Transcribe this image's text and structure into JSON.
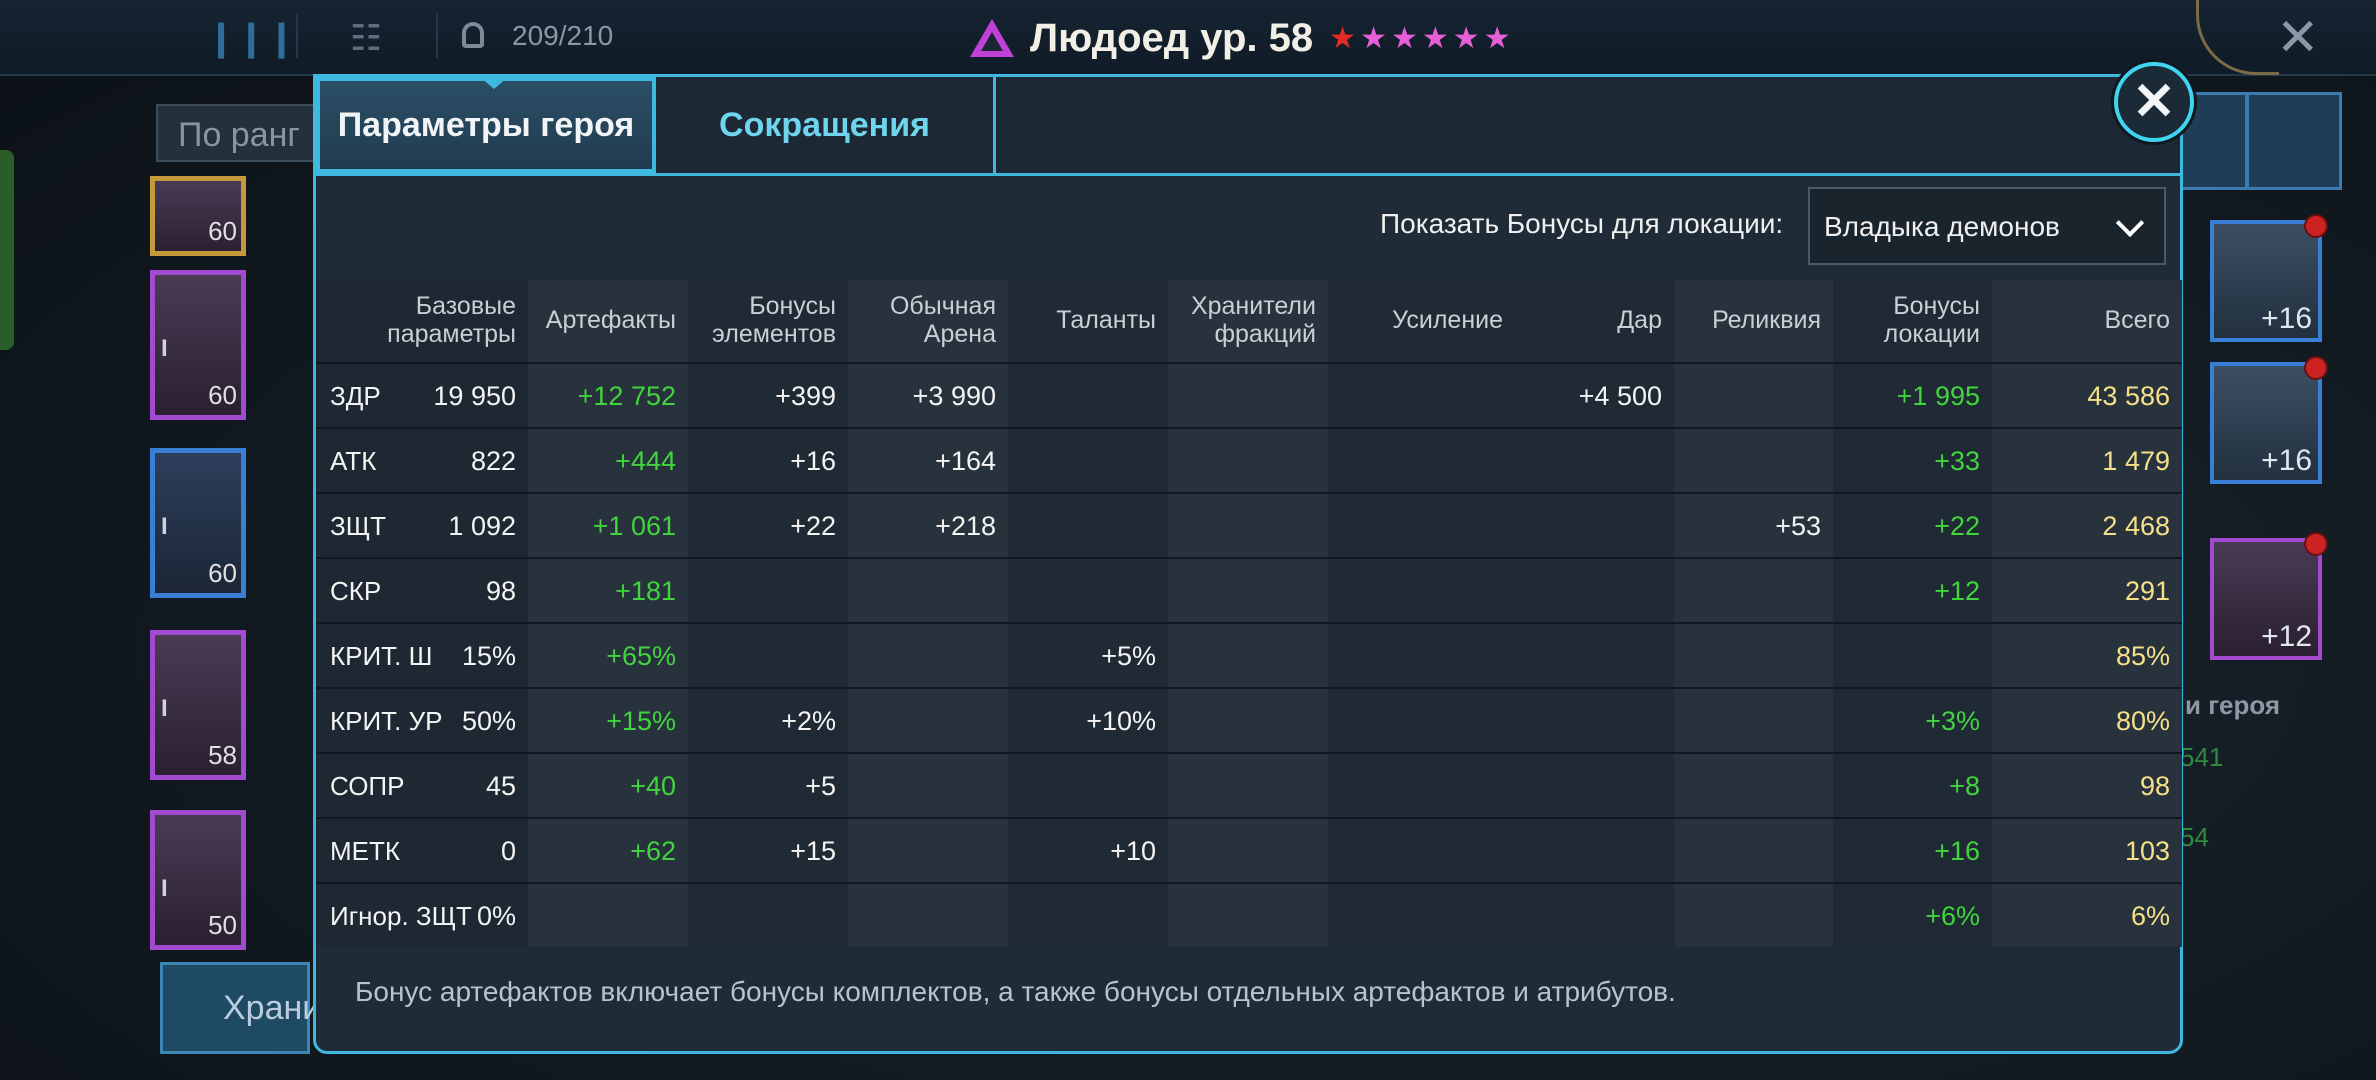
{
  "topbar": {
    "count": "209/210",
    "title": "Людоед ур. 58",
    "stars": 6
  },
  "background": {
    "search_placeholder": "По ранг",
    "cards": [
      "60",
      "60",
      "60",
      "58",
      "50"
    ],
    "store_label": "Храни",
    "items": [
      "+16",
      "+16",
      "+12"
    ],
    "right_label": "и героя",
    "right_values": [
      "541",
      "54"
    ]
  },
  "tabs": {
    "active": "Параметры героя",
    "inactive": "Сокращения"
  },
  "location": {
    "label": "Показать Бонусы для локации:",
    "selected": "Владыка демонов"
  },
  "columns": [
    "Базовые параметры",
    "Артефакты",
    "Бонусы элементов",
    "Обычная Арена",
    "Таланты",
    "Хранители фракций",
    "Усиление",
    "Дар",
    "Реликвия",
    "Бонусы локации",
    "Всего"
  ],
  "rows": [
    {
      "name": "ЗДР",
      "base": "19 950",
      "artifacts": "+12 752",
      "elements": "+399",
      "arena": "+3 990",
      "talents": "",
      "keepers": "",
      "boost": "",
      "gift": "+4 500",
      "relic": "",
      "location": "+1 995",
      "total": "43 586"
    },
    {
      "name": "АТК",
      "base": "822",
      "artifacts": "+444",
      "elements": "+16",
      "arena": "+164",
      "talents": "",
      "keepers": "",
      "boost": "",
      "gift": "",
      "relic": "",
      "location": "+33",
      "total": "1 479"
    },
    {
      "name": "ЗЩТ",
      "base": "1 092",
      "artifacts": "+1 061",
      "elements": "+22",
      "arena": "+218",
      "talents": "",
      "keepers": "",
      "boost": "",
      "gift": "",
      "relic": "+53",
      "location": "+22",
      "total": "2 468"
    },
    {
      "name": "СКР",
      "base": "98",
      "artifacts": "+181",
      "elements": "",
      "arena": "",
      "talents": "",
      "keepers": "",
      "boost": "",
      "gift": "",
      "relic": "",
      "location": "+12",
      "total": "291"
    },
    {
      "name": "КРИТ. Ш",
      "base": "15%",
      "artifacts": "+65%",
      "elements": "",
      "arena": "",
      "talents": "+5%",
      "keepers": "",
      "boost": "",
      "gift": "",
      "relic": "",
      "location": "",
      "total": "85%"
    },
    {
      "name": "КРИТ. УР",
      "base": "50%",
      "artifacts": "+15%",
      "elements": "+2%",
      "arena": "",
      "talents": "+10%",
      "keepers": "",
      "boost": "",
      "gift": "",
      "relic": "",
      "location": "+3%",
      "total": "80%"
    },
    {
      "name": "СОПР",
      "base": "45",
      "artifacts": "+40",
      "elements": "+5",
      "arena": "",
      "talents": "",
      "keepers": "",
      "boost": "",
      "gift": "",
      "relic": "",
      "location": "+8",
      "total": "98"
    },
    {
      "name": "МЕТК",
      "base": "0",
      "artifacts": "+62",
      "elements": "+15",
      "arena": "",
      "talents": "+10",
      "keepers": "",
      "boost": "",
      "gift": "",
      "relic": "",
      "location": "+16",
      "total": "103"
    },
    {
      "name": "Игнор. ЗЩТ",
      "base": "0%",
      "artifacts": "",
      "elements": "",
      "arena": "",
      "talents": "",
      "keepers": "",
      "boost": "",
      "gift": "",
      "relic": "",
      "location": "+6%",
      "total": "6%"
    }
  ],
  "note": "Бонус артефактов включает бонусы комплектов, а также бонусы отдельных артефактов и атрибутов.",
  "colors": {
    "accent": "#3fb8e0",
    "bonus_green": "#41d43e",
    "total_yellow": "#f5e08a",
    "title_purple": "#c040d8"
  }
}
